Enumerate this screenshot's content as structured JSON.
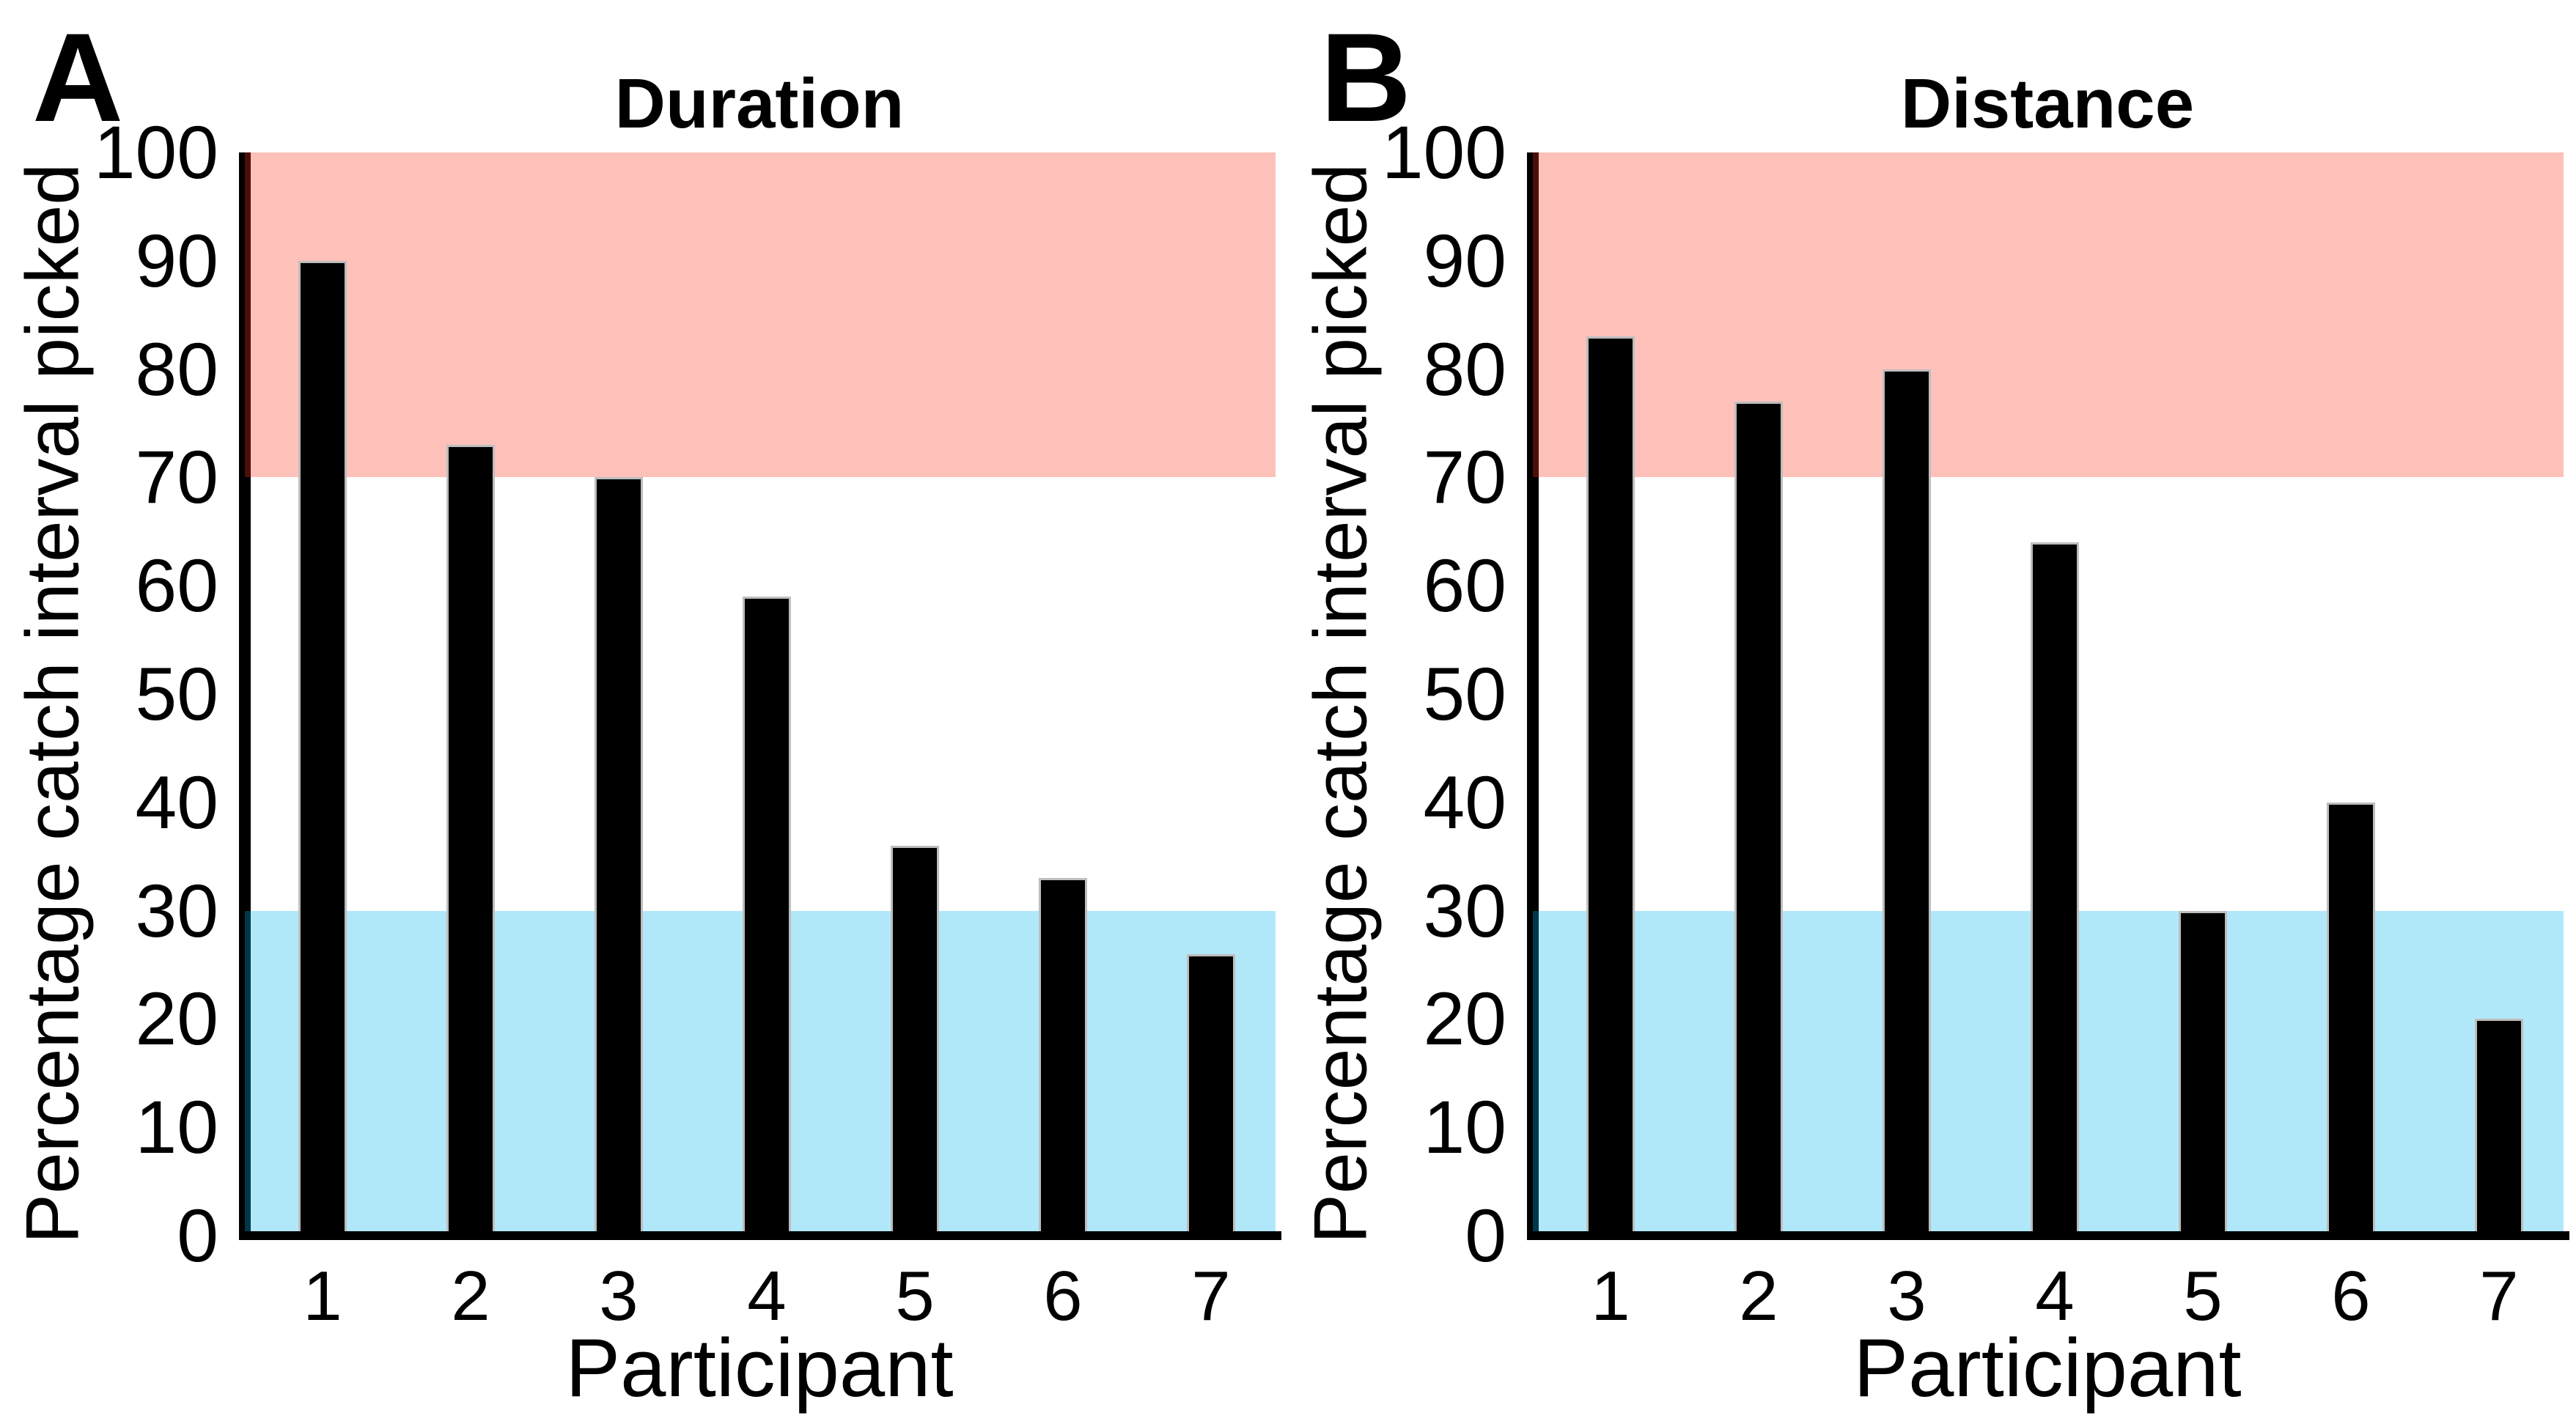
{
  "figure": {
    "background": "#ffffff",
    "text_color": "#000000"
  },
  "chart_data": [
    {
      "type": "bar",
      "panel_letter": "A",
      "title": "Duration",
      "xlabel": "Participant",
      "ylabel": "Percentage catch interval picked",
      "categories": [
        "1",
        "2",
        "3",
        "4",
        "5",
        "6",
        "7"
      ],
      "values": [
        90,
        73,
        70,
        59,
        36,
        33,
        26
      ],
      "ylim": [
        0,
        100
      ],
      "yticks": [
        0,
        10,
        20,
        30,
        40,
        50,
        60,
        70,
        80,
        90,
        100
      ],
      "grid": false,
      "legend": null,
      "bar_color": "#000000",
      "bar_edge_color": "#bdbdbd",
      "axis_color": "#000000",
      "bands": [
        {
          "name": "upper-band",
          "from": 70,
          "to": 100,
          "fill": "#fcbcb2",
          "overlay": "rgba(250,50,28,0.30)"
        },
        {
          "name": "lower-band",
          "from": 0,
          "to": 30,
          "fill": "#b4ecfa",
          "overlay": "rgba(0,182,238,0.31)"
        }
      ]
    },
    {
      "type": "bar",
      "panel_letter": "B",
      "title": "Distance",
      "xlabel": "Participant",
      "ylabel": "Percentage catch interval picked",
      "categories": [
        "1",
        "2",
        "3",
        "4",
        "5",
        "6",
        "7"
      ],
      "values": [
        83,
        77,
        80,
        64,
        30,
        40,
        20
      ],
      "ylim": [
        0,
        100
      ],
      "yticks": [
        0,
        10,
        20,
        30,
        40,
        50,
        60,
        70,
        80,
        90,
        100
      ],
      "grid": false,
      "legend": null,
      "bar_color": "#000000",
      "bar_edge_color": "#bdbdbd",
      "axis_color": "#000000",
      "bands": [
        {
          "name": "upper-band",
          "from": 70,
          "to": 100,
          "fill": "#fcbcb2",
          "overlay": "rgba(250,50,28,0.30)"
        },
        {
          "name": "lower-band",
          "from": 0,
          "to": 30,
          "fill": "#b4ecfa",
          "overlay": "rgba(0,182,238,0.31)"
        }
      ]
    }
  ]
}
